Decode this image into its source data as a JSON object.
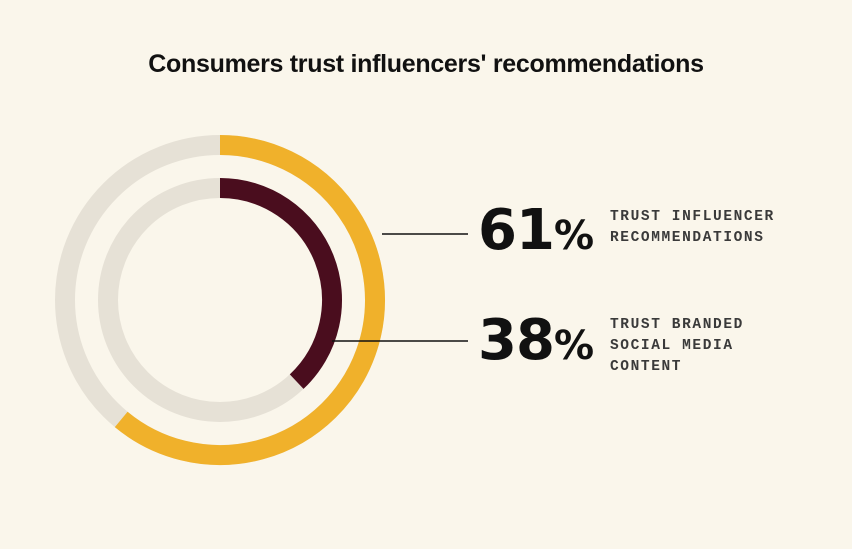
{
  "title": "Consumers trust influencers' recommendations",
  "chart_data": {
    "type": "pie",
    "variant": "concentric-radial-rings",
    "title": "Consumers trust influencers' recommendations",
    "series": [
      {
        "name": "TRUST INFLUENCER\nRECOMMENDATIONS",
        "value": 61,
        "display": "61",
        "unit": "%",
        "color": "#f0b12b"
      },
      {
        "name": "TRUST BRANDED\nSOCIAL MEDIA\nCONTENT",
        "value": 38,
        "display": "38",
        "unit": "%",
        "color": "#4a0d1e"
      }
    ],
    "track_color": "#e6e1d6",
    "max": 100
  }
}
